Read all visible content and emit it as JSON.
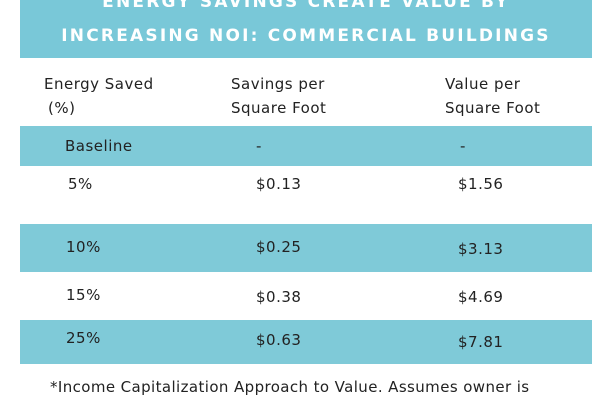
{
  "title": {
    "line1": "ENERGY SAVINGS CREATE VALUE BY",
    "line2": "INCREASING NOI: COMMERCIAL BUILDINGS"
  },
  "table": {
    "headers": [
      {
        "line1": "Energy Saved",
        "line2": "(%)"
      },
      {
        "line1": "Savings per",
        "line2": "Square Foot"
      },
      {
        "line1": "Value per",
        "line2": "Square Foot"
      }
    ],
    "rows": [
      {
        "energy_saved": "Baseline",
        "savings": "-",
        "value": "-"
      },
      {
        "energy_saved": "5%",
        "savings": "$0.13",
        "value": "$1.56"
      },
      {
        "energy_saved": "10%",
        "savings": "$0.25",
        "value": "$3.13"
      },
      {
        "energy_saved": "15%",
        "savings": "$0.38",
        "value": "$4.69"
      },
      {
        "energy_saved": "25%",
        "savings": "$0.63",
        "value": "$7.81"
      }
    ]
  },
  "footnote": "*Income Capitalization Approach to Value. Assumes owner is",
  "colors": {
    "band": "#79c8d8",
    "row_teal": "#7fcad8",
    "title_text": "#ffffff"
  }
}
